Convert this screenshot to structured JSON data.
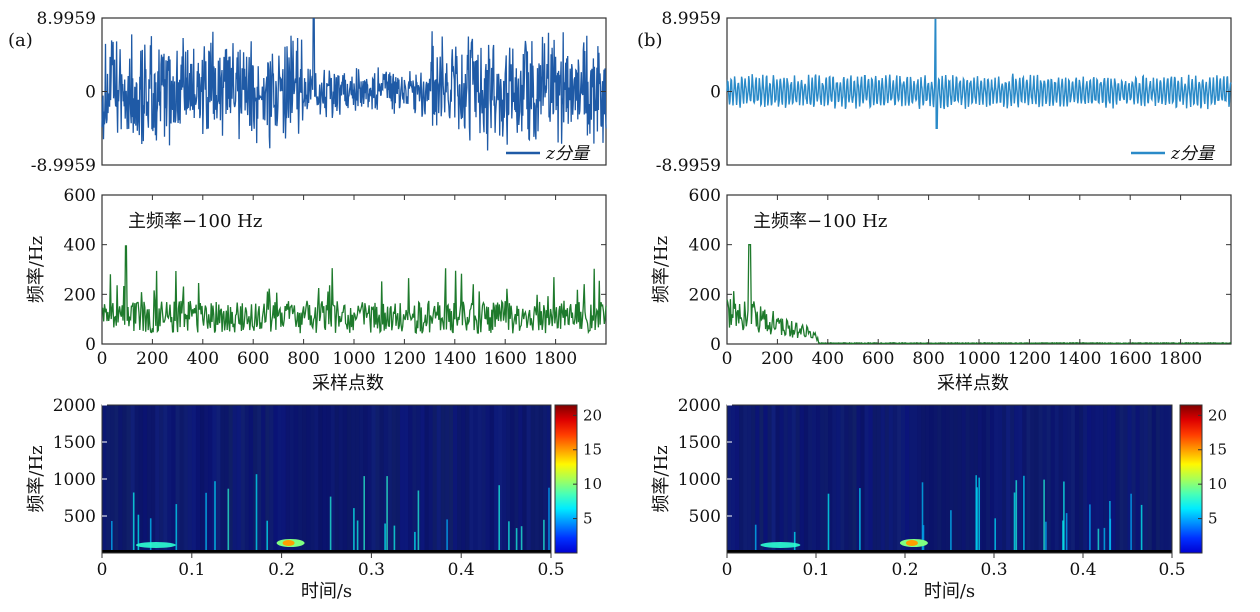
{
  "panels": [
    {
      "label": "(a)",
      "signal": {
        "type": "line",
        "series_name": "z分量",
        "yticks": [
          "8.9959",
          "0",
          "-8.9959"
        ],
        "ylim": [
          -8.9959,
          8.9959
        ],
        "color": "#1f5aa6",
        "segments": [
          {
            "x_range": [
              0,
              800
            ],
            "amplitude": 8.0
          },
          {
            "x_range": [
              800,
              1300
            ],
            "amplitude": 3.8
          },
          {
            "x_range": [
              1300,
              2000
            ],
            "amplitude": 8.0
          }
        ]
      },
      "frequency": {
        "type": "line",
        "annotation": "主频率−100 Hz",
        "ylabel": "频率/Hz",
        "xlabel": "采样点数",
        "yticks": [
          "0",
          "200",
          "400",
          "600"
        ],
        "ylim": [
          0,
          600
        ],
        "xlim": [
          0,
          2000
        ],
        "xticks": [
          "0",
          "200",
          "400",
          "600",
          "800",
          "1000",
          "1200",
          "1400",
          "1600",
          "1800"
        ],
        "color": "#1e7a2c",
        "active_until": 2000,
        "mean_hz": 120
      },
      "spectrogram": {
        "type": "heatmap",
        "ylabel": "频率/Hz",
        "xlabel": "时间/s",
        "yticks": [
          "500",
          "1000",
          "1500",
          "2000"
        ],
        "xticks": [
          "0",
          "0.1",
          "0.2",
          "0.3",
          "0.4",
          "0.5"
        ],
        "xlim": [
          0,
          0.5
        ],
        "ylim": [
          0,
          2000
        ],
        "colorbar_ticks": [
          "5",
          "10",
          "15",
          "20"
        ],
        "colorbar_range": [
          0,
          21.5
        ]
      }
    },
    {
      "label": "(b)",
      "signal": {
        "type": "line",
        "series_name": "z分量",
        "yticks": [
          "8.9959",
          "0",
          "-8.9959"
        ],
        "ylim": [
          -8.9959,
          8.9959
        ],
        "color": "#2a8ac8",
        "segments": [
          {
            "x_range": [
              0,
              2000
            ],
            "amplitude": 2.2
          }
        ]
      },
      "frequency": {
        "type": "line",
        "annotation": "主频率−100 Hz",
        "ylabel": "频率/Hz",
        "xlabel": "采样点数",
        "yticks": [
          "0",
          "200",
          "400",
          "600"
        ],
        "ylim": [
          0,
          600
        ],
        "xlim": [
          0,
          2000
        ],
        "xticks": [
          "0",
          "200",
          "400",
          "600",
          "800",
          "1000",
          "1200",
          "1400",
          "1600",
          "1800"
        ],
        "color": "#1e7a2c",
        "active_until": 360,
        "mean_hz": 130
      },
      "spectrogram": {
        "type": "heatmap",
        "ylabel": "频率/Hz",
        "xlabel": "时间/s",
        "yticks": [
          "500",
          "1000",
          "1500",
          "2000"
        ],
        "xticks": [
          "0",
          "0.1",
          "0.2",
          "0.3",
          "0.4",
          "0.5"
        ],
        "xlim": [
          0,
          0.5
        ],
        "ylim": [
          0,
          2000
        ],
        "colorbar_ticks": [
          "5",
          "10",
          "15",
          "20"
        ],
        "colorbar_range": [
          0,
          21.5
        ]
      }
    }
  ]
}
